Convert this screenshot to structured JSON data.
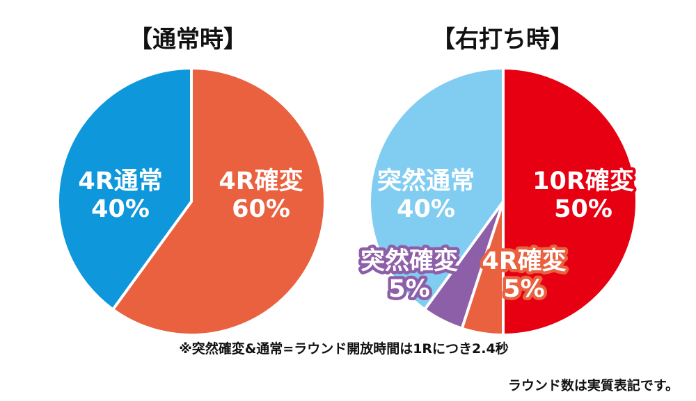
{
  "chart_data": [
    {
      "type": "pie",
      "title": "【通常時】",
      "slices": [
        {
          "label": "4R確変",
          "value": 60,
          "value_label": "60%",
          "color": "#e9613f"
        },
        {
          "label": "4R通常",
          "value": 40,
          "value_label": "40%",
          "color": "#0f97db"
        }
      ]
    },
    {
      "type": "pie",
      "title": "【右打ち時】",
      "slices": [
        {
          "label": "10R確変",
          "value": 50,
          "value_label": "50%",
          "color": "#e60012"
        },
        {
          "label": "4R確変",
          "value": 5,
          "value_label": "5%",
          "color": "#e9613f"
        },
        {
          "label": "突然確変",
          "value": 5,
          "value_label": "5%",
          "color": "#8e5fa9"
        },
        {
          "label": "突然通常",
          "value": 40,
          "value_label": "40%",
          "color": "#81cdf2"
        }
      ]
    }
  ],
  "notes": {
    "footnote": "※突然確変&通常=ラウンド開放時間は1Rにつき2.4秒",
    "round_note": "ラウンド数は実質表記です。"
  }
}
